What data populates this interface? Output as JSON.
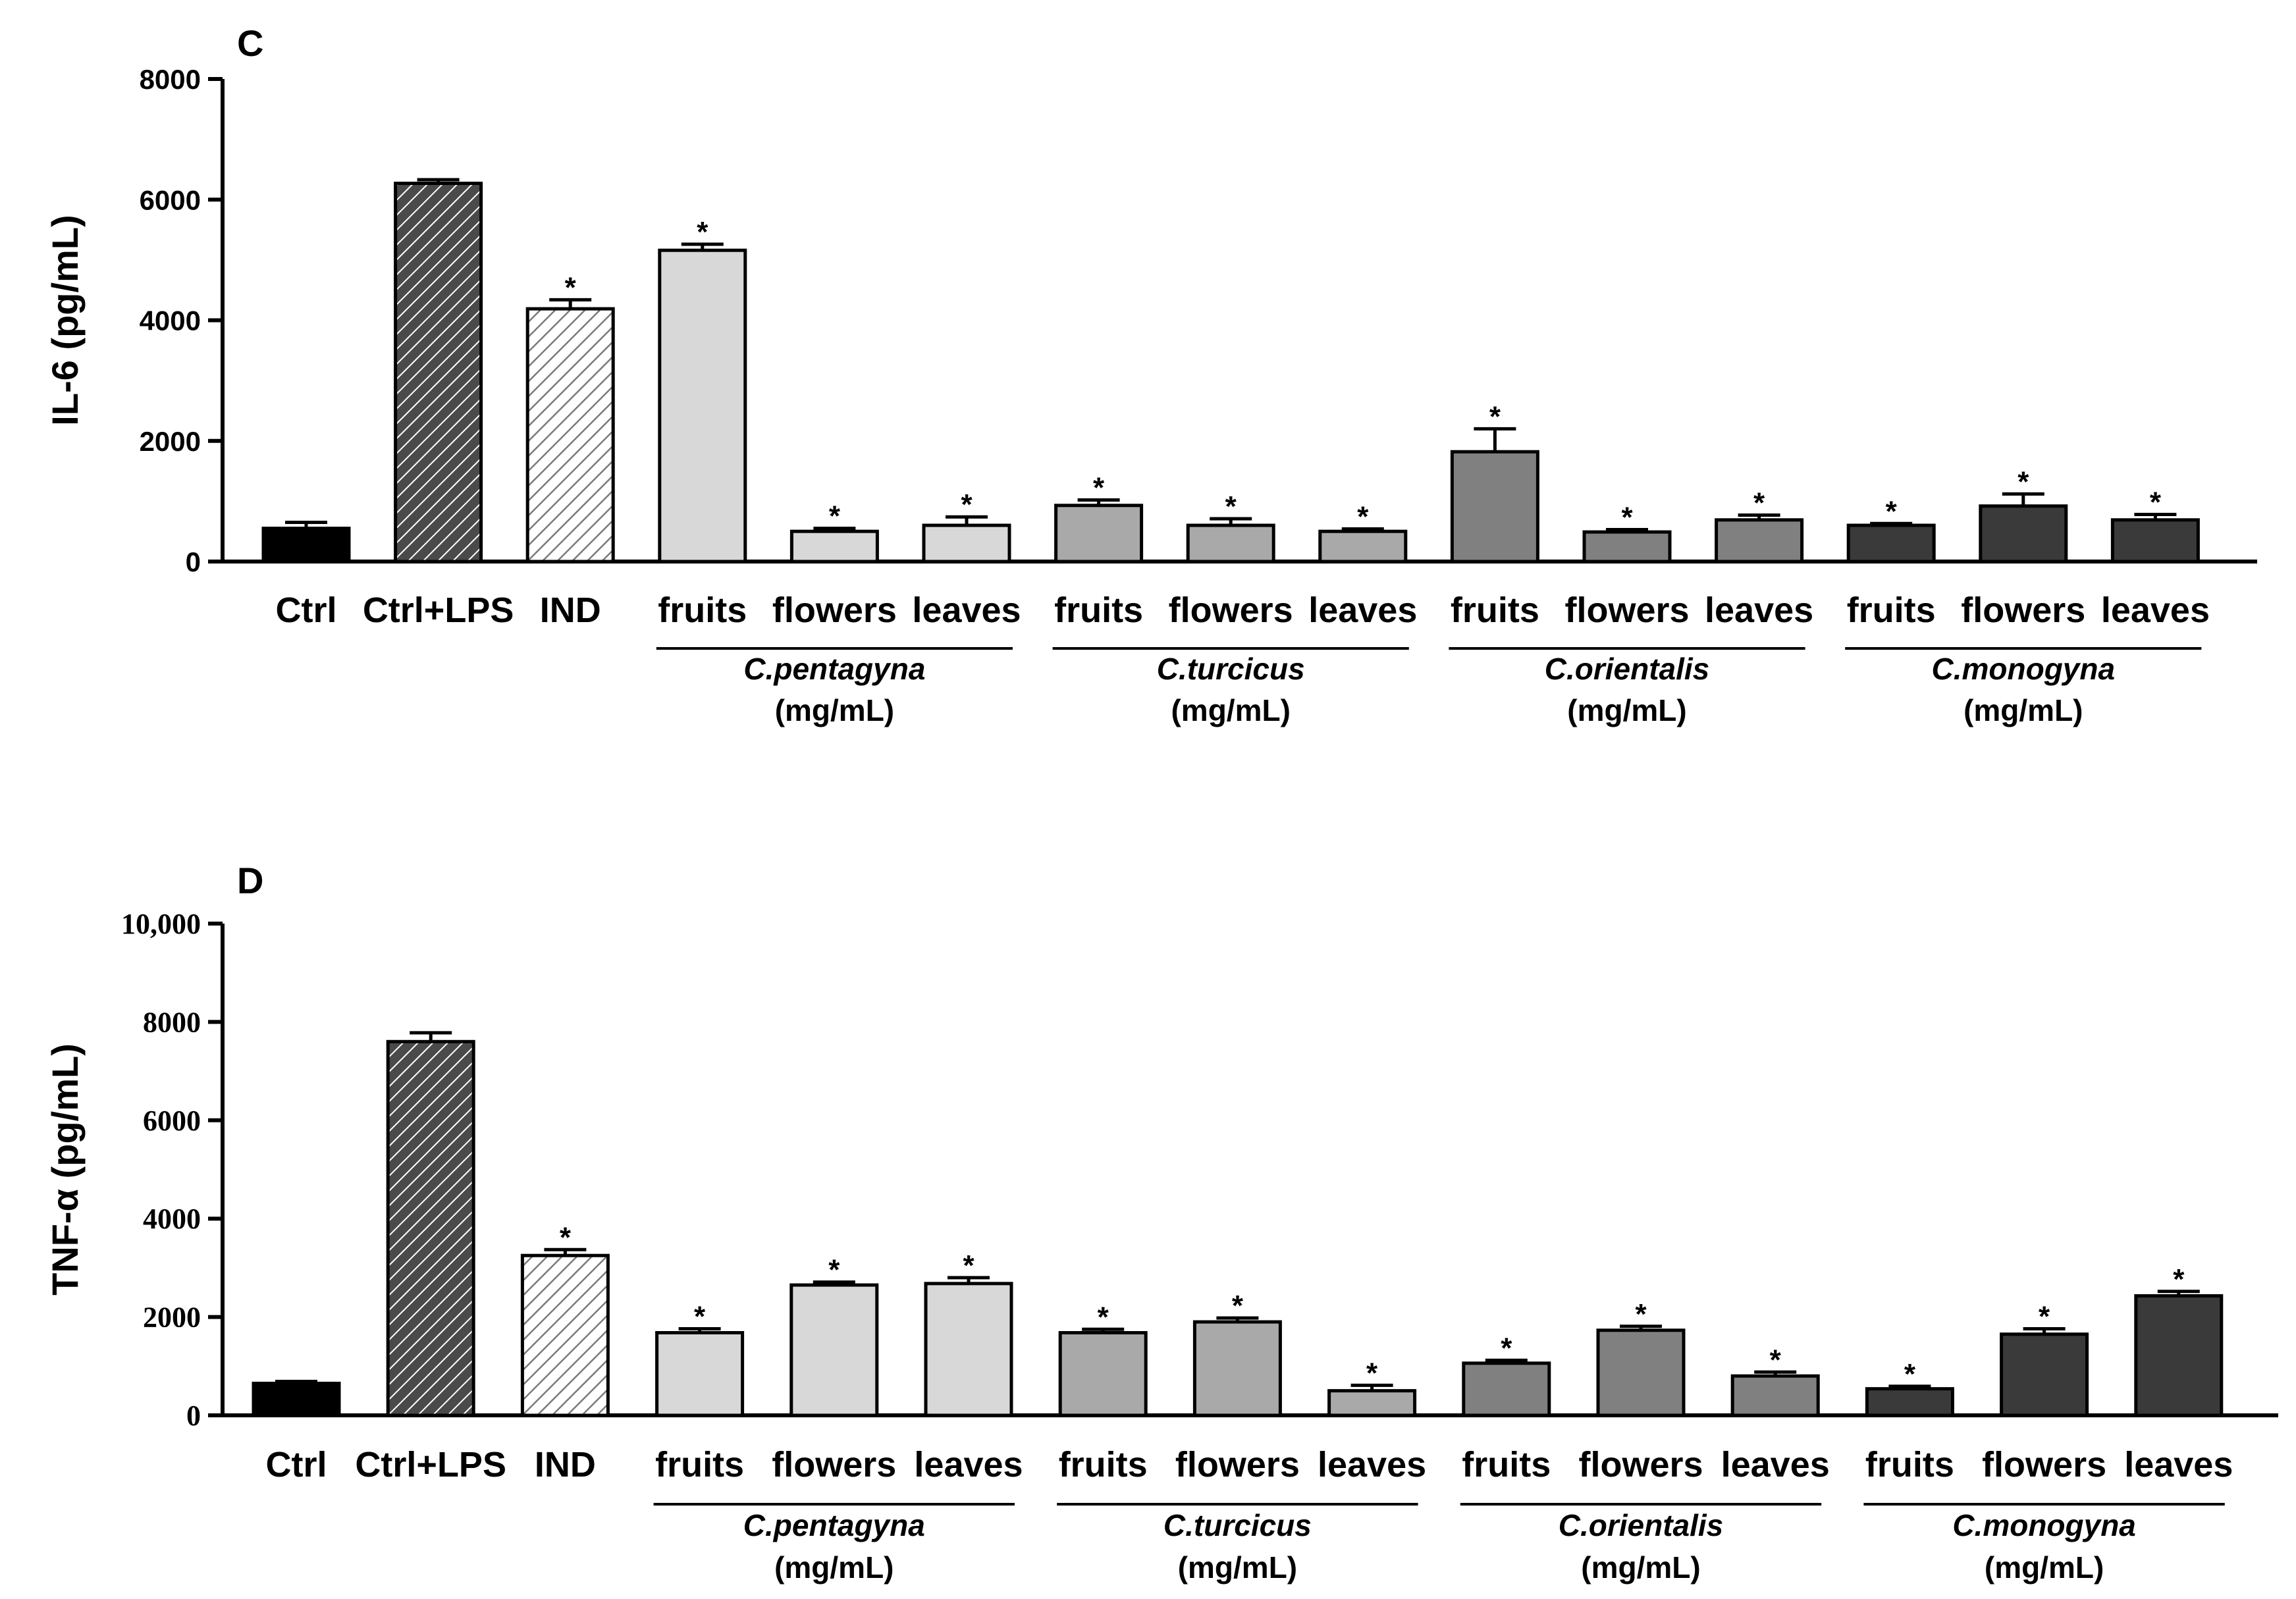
{
  "chart_data": [
    {
      "panel": "C",
      "type": "bar",
      "ylabel": "IL-6 (pg/mL)",
      "ylim": [
        0,
        8000
      ],
      "yticks": [
        0,
        2000,
        4000,
        6000,
        8000
      ],
      "ytick_labels": [
        "0",
        "2000",
        "4000",
        "6000",
        "8000"
      ],
      "categories": [
        "Ctrl",
        "Ctrl+LPS",
        "IND",
        "fruits",
        "flowers",
        "leaves",
        "fruits",
        "flowers",
        "leaves",
        "fruits",
        "flowers",
        "leaves",
        "fruits",
        "flowers",
        "leaves"
      ],
      "values": [
        550,
        6270,
        4190,
        5160,
        500,
        600,
        930,
        600,
        500,
        1820,
        490,
        690,
        600,
        920,
        690
      ],
      "errors": [
        100,
        60,
        150,
        100,
        50,
        140,
        90,
        110,
        40,
        380,
        40,
        80,
        30,
        200,
        90
      ],
      "significant": [
        false,
        false,
        true,
        true,
        true,
        true,
        true,
        true,
        true,
        true,
        true,
        true,
        true,
        true,
        true
      ],
      "fill_styles": [
        "black",
        "hatch-dark",
        "hatch-light",
        "light",
        "light",
        "light",
        "mid-light",
        "mid-light",
        "mid-light",
        "mid",
        "mid",
        "mid",
        "dark",
        "dark",
        "dark"
      ],
      "groups": [
        {
          "name": "C.pentagyna",
          "unit": "(mg/mL)",
          "members": [
            3,
            5
          ]
        },
        {
          "name": "C.turcicus",
          "unit": "(mg/mL)",
          "members": [
            6,
            8
          ]
        },
        {
          "name": "C.orientalis",
          "unit": "(mg/mL)",
          "members": [
            9,
            11
          ]
        },
        {
          "name": "C.monogyna",
          "unit": "(mg/mL)",
          "members": [
            12,
            14
          ]
        }
      ]
    },
    {
      "panel": "D",
      "type": "bar",
      "ylabel": "TNF-α (pg/mL)",
      "ylim": [
        0,
        10000
      ],
      "yticks": [
        0,
        2000,
        4000,
        6000,
        8000,
        10000
      ],
      "ytick_labels": [
        "0",
        "2000",
        "4000",
        "6000",
        "8000",
        "10,000"
      ],
      "categories": [
        "Ctrl",
        "Ctrl+LPS",
        "IND",
        "fruits",
        "flowers",
        "leaves",
        "fruits",
        "flowers",
        "leaves",
        "fruits",
        "flowers",
        "leaves",
        "fruits",
        "flowers",
        "leaves"
      ],
      "values": [
        650,
        7600,
        3250,
        1680,
        2650,
        2680,
        1680,
        1900,
        500,
        1060,
        1730,
        800,
        540,
        1650,
        2430
      ],
      "errors": [
        40,
        180,
        120,
        80,
        60,
        120,
        70,
        80,
        110,
        60,
        80,
        80,
        50,
        110,
        90
      ],
      "significant": [
        false,
        false,
        true,
        true,
        true,
        true,
        true,
        true,
        true,
        true,
        true,
        true,
        true,
        true,
        true
      ],
      "fill_styles": [
        "black",
        "hatch-dark",
        "hatch-light",
        "light",
        "light",
        "light",
        "mid-light",
        "mid-light",
        "mid-light",
        "mid",
        "mid",
        "mid",
        "dark",
        "dark",
        "dark"
      ],
      "groups": [
        {
          "name": "C.pentagyna",
          "unit": "(mg/mL)",
          "members": [
            3,
            5
          ]
        },
        {
          "name": "C.turcicus",
          "unit": "(mg/mL)",
          "members": [
            6,
            8
          ]
        },
        {
          "name": "C.orientalis",
          "unit": "(mg/mL)",
          "members": [
            9,
            11
          ]
        },
        {
          "name": "C.monogyna",
          "unit": "(mg/mL)",
          "members": [
            12,
            14
          ]
        }
      ]
    }
  ],
  "significance_marker": "*",
  "colors": {
    "black": "#000000",
    "light": "#d8d8d8",
    "mid_light": "#a9a9a9",
    "mid": "#808080",
    "dark": "#3a3a3a",
    "hatch_dark_bg": "#4a4a4a",
    "hatch_light_bg": "#9a9a9a",
    "hatch_line": "#ffffff",
    "axis": "#000000"
  }
}
